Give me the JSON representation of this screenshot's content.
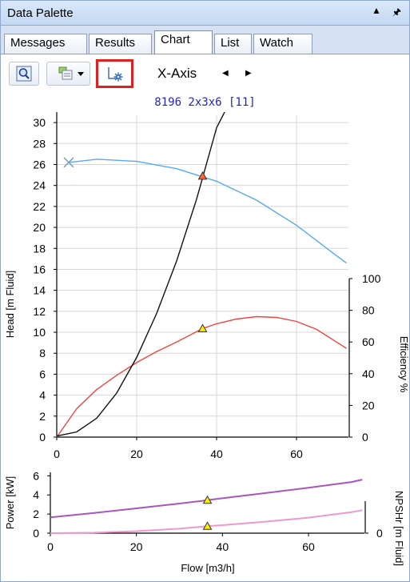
{
  "window": {
    "title": "Data Palette"
  },
  "tabs": [
    {
      "label": "Messages",
      "active": false
    },
    {
      "label": "Results",
      "active": false
    },
    {
      "label": "Chart",
      "active": true
    },
    {
      "label": "List",
      "active": false
    },
    {
      "label": "Watch",
      "active": false
    }
  ],
  "toolbar": {
    "xaxis_label": "X-Axis",
    "icons": [
      "zoom-icon",
      "chart-options-dropdown-icon",
      "axis-settings-icon"
    ]
  },
  "chart_title": "8196 2x3x6 [11]",
  "colors": {
    "head": "#55aaee",
    "efficiency": "#ee4444",
    "system": "#111111",
    "power": "#aa55bb",
    "npsh": "#ee99cc",
    "operating_point": "#ffee00",
    "highlight": "#e02020"
  },
  "chart_data": [
    {
      "type": "line",
      "title": "8196 2x3x6 [11]",
      "xlabel": "",
      "xlim": [
        0,
        73
      ],
      "x_ticks": [
        "0",
        "20",
        "40",
        "60"
      ],
      "ylabel": "Head [m Fluid]",
      "ylim": [
        0,
        31
      ],
      "y_ticks": [
        "0",
        "2",
        "4",
        "6",
        "8",
        "10",
        "12",
        "14",
        "16",
        "18",
        "20",
        "22",
        "24",
        "26",
        "28",
        "30"
      ],
      "y2label": "Efficiency %",
      "y2lim": [
        0,
        100
      ],
      "y2_ticks": [
        "0",
        "20",
        "40",
        "60",
        "80",
        "100"
      ],
      "grid": true,
      "series": [
        {
          "axis": "y",
          "x": [
            3,
            10,
            20,
            30,
            40,
            50,
            60,
            70,
            72.5
          ],
          "values": [
            26.2,
            26.5,
            26.3,
            25.6,
            24.4,
            22.6,
            20.2,
            17.3,
            16.6
          ]
        },
        {
          "axis": "y2",
          "x": [
            0,
            5,
            10,
            15,
            20,
            25,
            30,
            36.5,
            40,
            45,
            50,
            55,
            60,
            65,
            70,
            72.5
          ],
          "values": [
            0,
            18,
            30,
            39,
            47,
            54,
            60,
            68.5,
            71.5,
            74.5,
            76,
            75.5,
            73,
            68,
            60,
            56
          ]
        },
        {
          "axis": "y",
          "x": [
            0,
            5,
            10,
            15,
            20,
            25,
            30,
            35,
            40,
            42
          ],
          "values": [
            0.1,
            0.5,
            1.8,
            4.2,
            7.6,
            11.8,
            16.8,
            22.7,
            29.5,
            33
          ]
        }
      ],
      "markers": [
        {
          "label": "start",
          "x": 3,
          "y": 26.2,
          "axis": "y",
          "shape": "x"
        },
        {
          "label": "operating-point-head",
          "x": 36.5,
          "y": 24.9,
          "axis": "y",
          "shape": "triangle"
        },
        {
          "label": "operating-point-efficiency",
          "x": 36.5,
          "y2": 68.5,
          "axis": "y2",
          "shape": "triangle"
        }
      ]
    },
    {
      "type": "line",
      "xlabel": "Flow [m3/h]",
      "xlim": [
        0,
        73
      ],
      "x_ticks": [
        "0",
        "20",
        "40",
        "60"
      ],
      "ylabel": "Power [kW]",
      "ylim": [
        0,
        6.7
      ],
      "y_ticks": [
        "0",
        "2",
        "4",
        "6"
      ],
      "y2label": "NPSHr [m Fluid]",
      "y2_ticks": [
        "0"
      ],
      "grid": false,
      "series": [
        {
          "axis": "y",
          "x": [
            0,
            10,
            20,
            30,
            36.5,
            40,
            50,
            60,
            70,
            72.5
          ],
          "values": [
            1.65,
            2.1,
            2.6,
            3.1,
            3.45,
            3.65,
            4.2,
            4.75,
            5.35,
            5.6
          ]
        },
        {
          "axis": "y2",
          "x": [
            0,
            10,
            20,
            30,
            36.5,
            40,
            50,
            60,
            70,
            72.5
          ],
          "values": [
            0,
            0.05,
            0.2,
            0.45,
            0.7,
            0.8,
            1.15,
            1.55,
            2.1,
            2.3
          ]
        }
      ],
      "markers": [
        {
          "label": "operating-point-power",
          "x": 36.5,
          "y": 3.45,
          "axis": "y",
          "shape": "triangle"
        },
        {
          "label": "operating-point-npsh",
          "x": 36.5,
          "y2": 0.7,
          "axis": "y2",
          "shape": "triangle"
        }
      ]
    }
  ]
}
